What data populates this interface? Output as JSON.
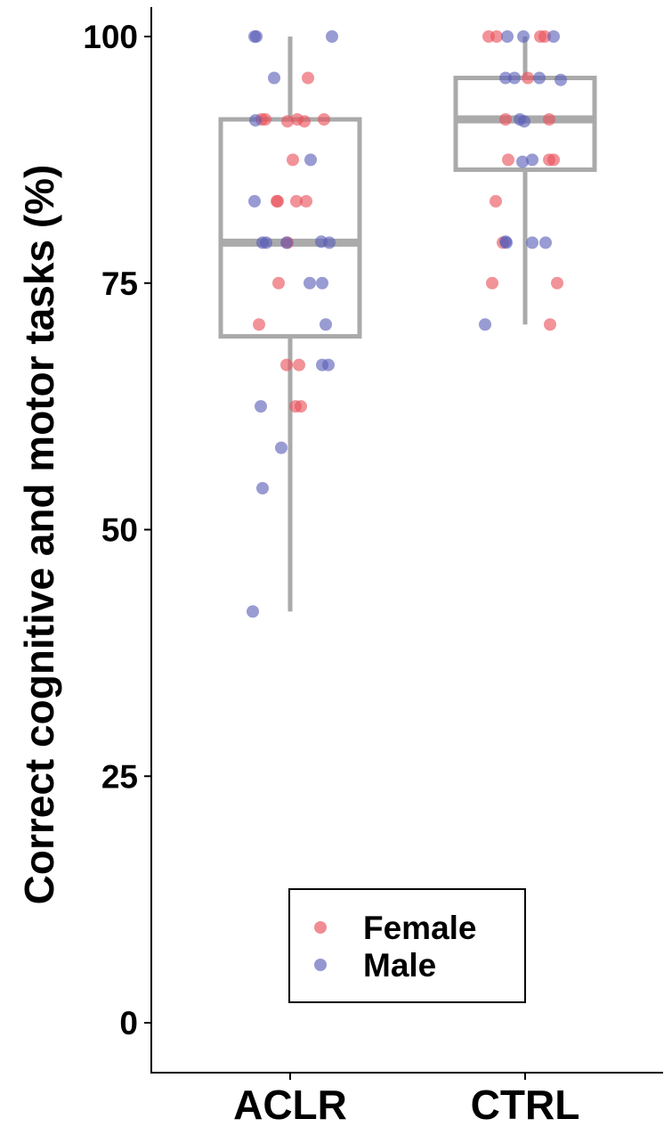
{
  "chart_data": {
    "type": "box",
    "ylabel": "Correct cognitive and motor tasks (%)",
    "xlabel": "",
    "ylim": [
      -3,
      103
    ],
    "yticks": [
      0,
      25,
      50,
      75,
      100
    ],
    "categories": [
      "ACLR",
      "CTRL"
    ],
    "boxes": [
      {
        "category": "ACLR",
        "min": 41.7,
        "q1": 69.6,
        "median": 79.1,
        "q3": 91.6,
        "max": 100
      },
      {
        "category": "CTRL",
        "min": 70.8,
        "q1": 86.5,
        "median": 91.6,
        "q3": 95.8,
        "max": 100
      }
    ],
    "series": [
      {
        "name": "Female",
        "color": "#e8505b",
        "points": [
          {
            "category": "ACLR",
            "offset": -0.32,
            "y": 91.6
          },
          {
            "category": "ACLR",
            "offset": -0.28,
            "y": 91.6
          },
          {
            "category": "ACLR",
            "offset": -0.03,
            "y": 91.4
          },
          {
            "category": "ACLR",
            "offset": 0.08,
            "y": 91.6
          },
          {
            "category": "ACLR",
            "offset": 0.16,
            "y": 91.4
          },
          {
            "category": "ACLR",
            "offset": 0.38,
            "y": 91.6
          },
          {
            "category": "ACLR",
            "offset": 0.2,
            "y": 95.8
          },
          {
            "category": "ACLR",
            "offset": 0.03,
            "y": 87.5
          },
          {
            "category": "ACLR",
            "offset": -0.15,
            "y": 83.3
          },
          {
            "category": "ACLR",
            "offset": -0.14,
            "y": 83.3
          },
          {
            "category": "ACLR",
            "offset": 0.07,
            "y": 83.3
          },
          {
            "category": "ACLR",
            "offset": 0.18,
            "y": 83.3
          },
          {
            "category": "ACLR",
            "offset": -0.03,
            "y": 79.1
          },
          {
            "category": "ACLR",
            "offset": -0.13,
            "y": 75.0
          },
          {
            "category": "ACLR",
            "offset": -0.35,
            "y": 70.8
          },
          {
            "category": "ACLR",
            "offset": -0.04,
            "y": 66.7
          },
          {
            "category": "ACLR",
            "offset": 0.1,
            "y": 66.7
          },
          {
            "category": "ACLR",
            "offset": 0.06,
            "y": 62.5
          },
          {
            "category": "ACLR",
            "offset": 0.12,
            "y": 62.5
          },
          {
            "category": "CTRL",
            "offset": -0.41,
            "y": 100
          },
          {
            "category": "CTRL",
            "offset": -0.32,
            "y": 100
          },
          {
            "category": "CTRL",
            "offset": 0.17,
            "y": 100
          },
          {
            "category": "CTRL",
            "offset": 0.22,
            "y": 100
          },
          {
            "category": "CTRL",
            "offset": 0.03,
            "y": 95.8
          },
          {
            "category": "CTRL",
            "offset": -0.22,
            "y": 91.6
          },
          {
            "category": "CTRL",
            "offset": 0.27,
            "y": 91.6
          },
          {
            "category": "CTRL",
            "offset": -0.19,
            "y": 87.5
          },
          {
            "category": "CTRL",
            "offset": 0.27,
            "y": 87.5
          },
          {
            "category": "CTRL",
            "offset": 0.32,
            "y": 87.5
          },
          {
            "category": "CTRL",
            "offset": -0.33,
            "y": 83.3
          },
          {
            "category": "CTRL",
            "offset": -0.25,
            "y": 79.1
          },
          {
            "category": "CTRL",
            "offset": -0.37,
            "y": 75.0
          },
          {
            "category": "CTRL",
            "offset": 0.36,
            "y": 75.0
          },
          {
            "category": "CTRL",
            "offset": 0.28,
            "y": 70.8
          }
        ]
      },
      {
        "name": "Male",
        "color": "#5b5db8",
        "points": [
          {
            "category": "ACLR",
            "offset": -0.4,
            "y": 100
          },
          {
            "category": "ACLR",
            "offset": -0.38,
            "y": 100
          },
          {
            "category": "ACLR",
            "offset": 0.47,
            "y": 100
          },
          {
            "category": "ACLR",
            "offset": -0.18,
            "y": 95.8
          },
          {
            "category": "ACLR",
            "offset": -0.39,
            "y": 91.5
          },
          {
            "category": "ACLR",
            "offset": 0.23,
            "y": 87.5
          },
          {
            "category": "ACLR",
            "offset": -0.4,
            "y": 83.3
          },
          {
            "category": "ACLR",
            "offset": -0.31,
            "y": 79.1
          },
          {
            "category": "ACLR",
            "offset": -0.27,
            "y": 79.1
          },
          {
            "category": "ACLR",
            "offset": -0.04,
            "y": 79.1
          },
          {
            "category": "ACLR",
            "offset": 0.35,
            "y": 79.2
          },
          {
            "category": "ACLR",
            "offset": 0.44,
            "y": 79.1
          },
          {
            "category": "ACLR",
            "offset": 0.22,
            "y": 75.0
          },
          {
            "category": "ACLR",
            "offset": 0.36,
            "y": 75.0
          },
          {
            "category": "ACLR",
            "offset": 0.4,
            "y": 70.8
          },
          {
            "category": "ACLR",
            "offset": 0.36,
            "y": 66.7
          },
          {
            "category": "ACLR",
            "offset": 0.43,
            "y": 66.7
          },
          {
            "category": "ACLR",
            "offset": -0.33,
            "y": 62.5
          },
          {
            "category": "ACLR",
            "offset": -0.1,
            "y": 58.3
          },
          {
            "category": "ACLR",
            "offset": -0.31,
            "y": 54.2
          },
          {
            "category": "ACLR",
            "offset": -0.42,
            "y": 41.7
          },
          {
            "category": "CTRL",
            "offset": -0.2,
            "y": 100
          },
          {
            "category": "CTRL",
            "offset": -0.02,
            "y": 100
          },
          {
            "category": "CTRL",
            "offset": 0.32,
            "y": 100
          },
          {
            "category": "CTRL",
            "offset": -0.22,
            "y": 95.8
          },
          {
            "category": "CTRL",
            "offset": -0.12,
            "y": 95.8
          },
          {
            "category": "CTRL",
            "offset": 0.16,
            "y": 95.8
          },
          {
            "category": "CTRL",
            "offset": 0.4,
            "y": 95.6
          },
          {
            "category": "CTRL",
            "offset": -0.06,
            "y": 91.6
          },
          {
            "category": "CTRL",
            "offset": -0.01,
            "y": 91.4
          },
          {
            "category": "CTRL",
            "offset": -0.03,
            "y": 87.3
          },
          {
            "category": "CTRL",
            "offset": 0.08,
            "y": 87.5
          },
          {
            "category": "CTRL",
            "offset": -0.22,
            "y": 79.2
          },
          {
            "category": "CTRL",
            "offset": -0.21,
            "y": 79.1
          },
          {
            "category": "CTRL",
            "offset": 0.08,
            "y": 79.1
          },
          {
            "category": "CTRL",
            "offset": 0.23,
            "y": 79.1
          },
          {
            "category": "CTRL",
            "offset": -0.45,
            "y": 70.8
          }
        ]
      }
    ],
    "legend": {
      "position": "bottom-center",
      "entries": [
        "Female",
        "Male"
      ]
    },
    "grid": false
  },
  "colors": {
    "box": "#aaaaaa",
    "axis": "#000000",
    "female": "#e8505b",
    "male": "#5b5db8"
  }
}
